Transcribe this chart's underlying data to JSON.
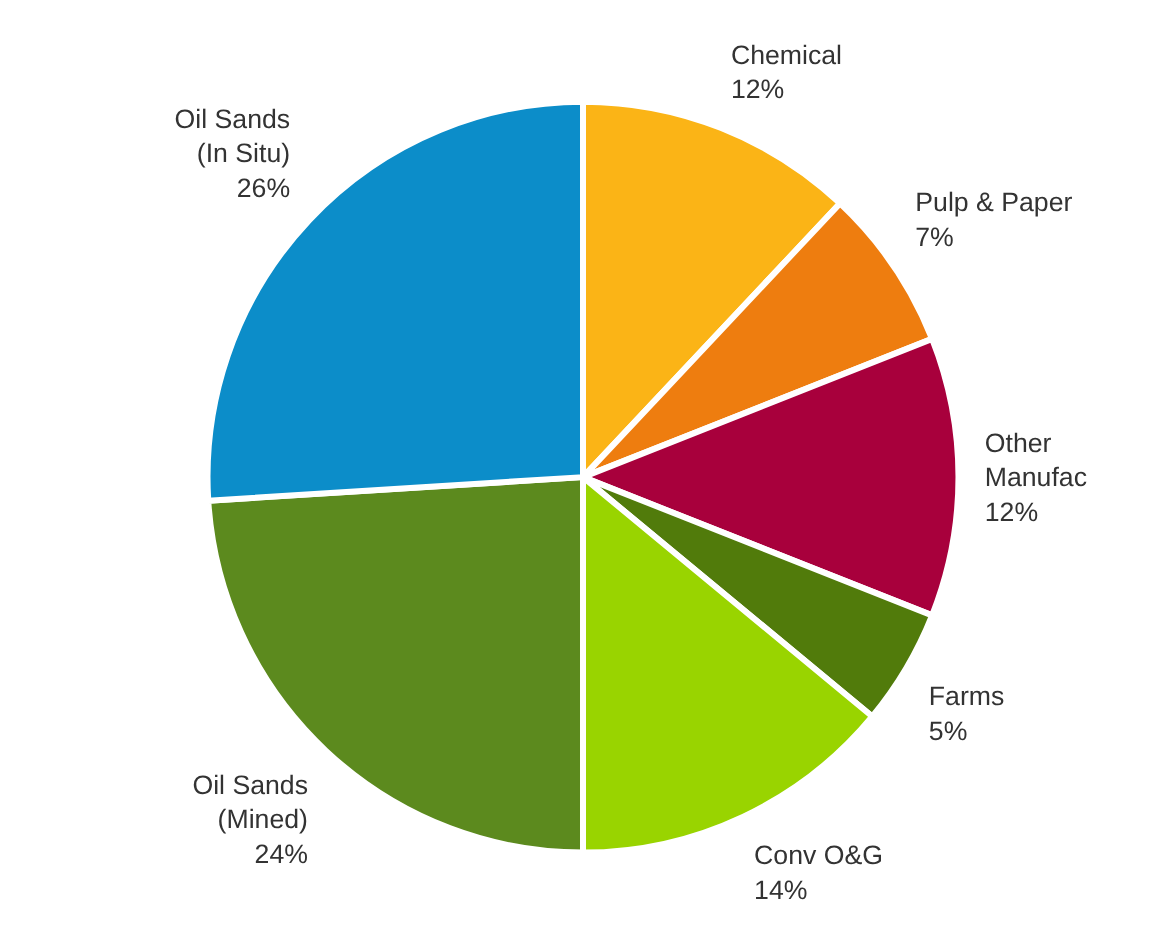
{
  "chart_data": {
    "type": "pie",
    "categories": [
      "Chemical",
      "Pulp & Paper",
      "Other Manufac",
      "Farms",
      "Conv O&G",
      "Oil Sands (Mined)",
      "Oil Sands (In Situ)"
    ],
    "values": [
      12,
      7,
      12,
      5,
      14,
      24,
      26
    ],
    "colors": [
      "#fbb416",
      "#ee7d0f",
      "#a8003c",
      "#517b0b",
      "#99d400",
      "#5c8a1e",
      "#0c8dc9"
    ],
    "value_labels": [
      "12%",
      "7%",
      "12%",
      "5%",
      "14%",
      "24%",
      "26%"
    ]
  }
}
